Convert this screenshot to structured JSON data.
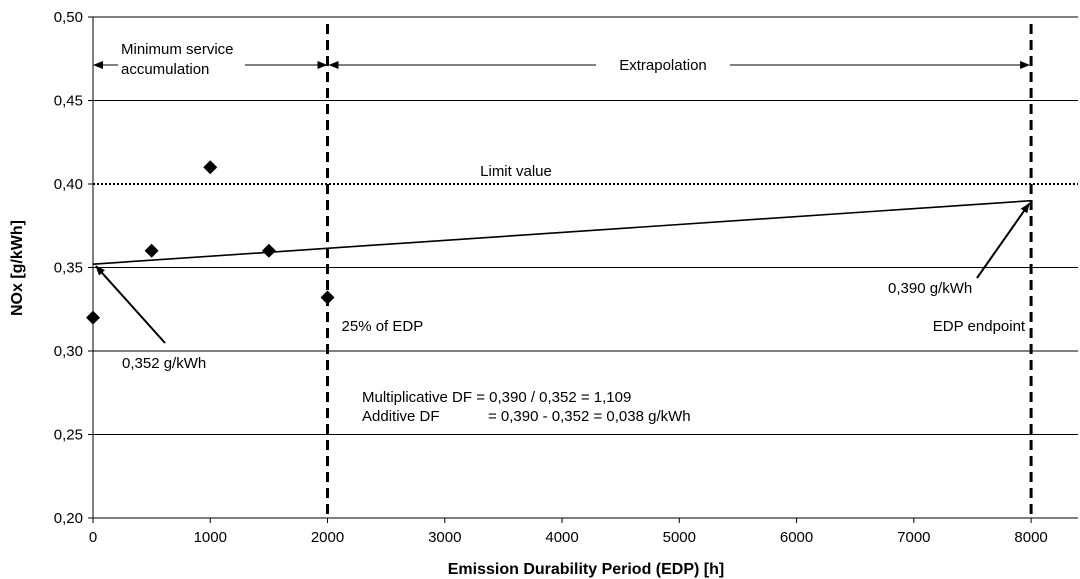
{
  "chart_data": {
    "type": "scatter",
    "xlabel": "Emission Durability Period (EDP) [h]",
    "ylabel": "NOx [g/kWh]",
    "xlim": [
      0,
      8400
    ],
    "ylim": [
      0.2,
      0.5
    ],
    "x_ticks": [
      0,
      1000,
      2000,
      3000,
      4000,
      5000,
      6000,
      7000,
      8000
    ],
    "x_tick_labels": [
      "0",
      "1000",
      "2000",
      "3000",
      "4000",
      "5000",
      "6000",
      "7000",
      "8000"
    ],
    "y_ticks": [
      0.2,
      0.25,
      0.3,
      0.35,
      0.4,
      0.45,
      0.5
    ],
    "y_tick_labels": [
      "0,20",
      "0,25",
      "0,30",
      "0,35",
      "0,40",
      "0,45",
      "0,50"
    ],
    "grid": "horizontal",
    "points": [
      {
        "x": 0,
        "y": 0.32
      },
      {
        "x": 500,
        "y": 0.36
      },
      {
        "x": 1000,
        "y": 0.41
      },
      {
        "x": 1500,
        "y": 0.36
      },
      {
        "x": 2000,
        "y": 0.332
      }
    ],
    "regression_line": {
      "x": [
        0,
        8000
      ],
      "y": [
        0.352,
        0.39
      ]
    },
    "limit_line": {
      "y": 0.4,
      "label": "Limit value"
    },
    "vertical_lines": [
      {
        "x": 2000,
        "label": "25% of EDP"
      },
      {
        "x": 8000,
        "label": "EDP endpoint"
      }
    ],
    "ranges": [
      {
        "from": 0,
        "to": 2000,
        "label_line1": "Minimum service",
        "label_line2": "accumulation"
      },
      {
        "from": 2000,
        "to": 8000,
        "label": "Extrapolation"
      }
    ],
    "annotations": {
      "start_value": "0,352 g/kWh",
      "end_value": "0,390 g/kWh",
      "df_mult": "Multiplicative DF = 0,390 / 0,352 = 1,109",
      "df_add_label": "Additive DF",
      "df_add_value": "= 0,390 - 0,352 =  0,038 g/kWh"
    }
  }
}
